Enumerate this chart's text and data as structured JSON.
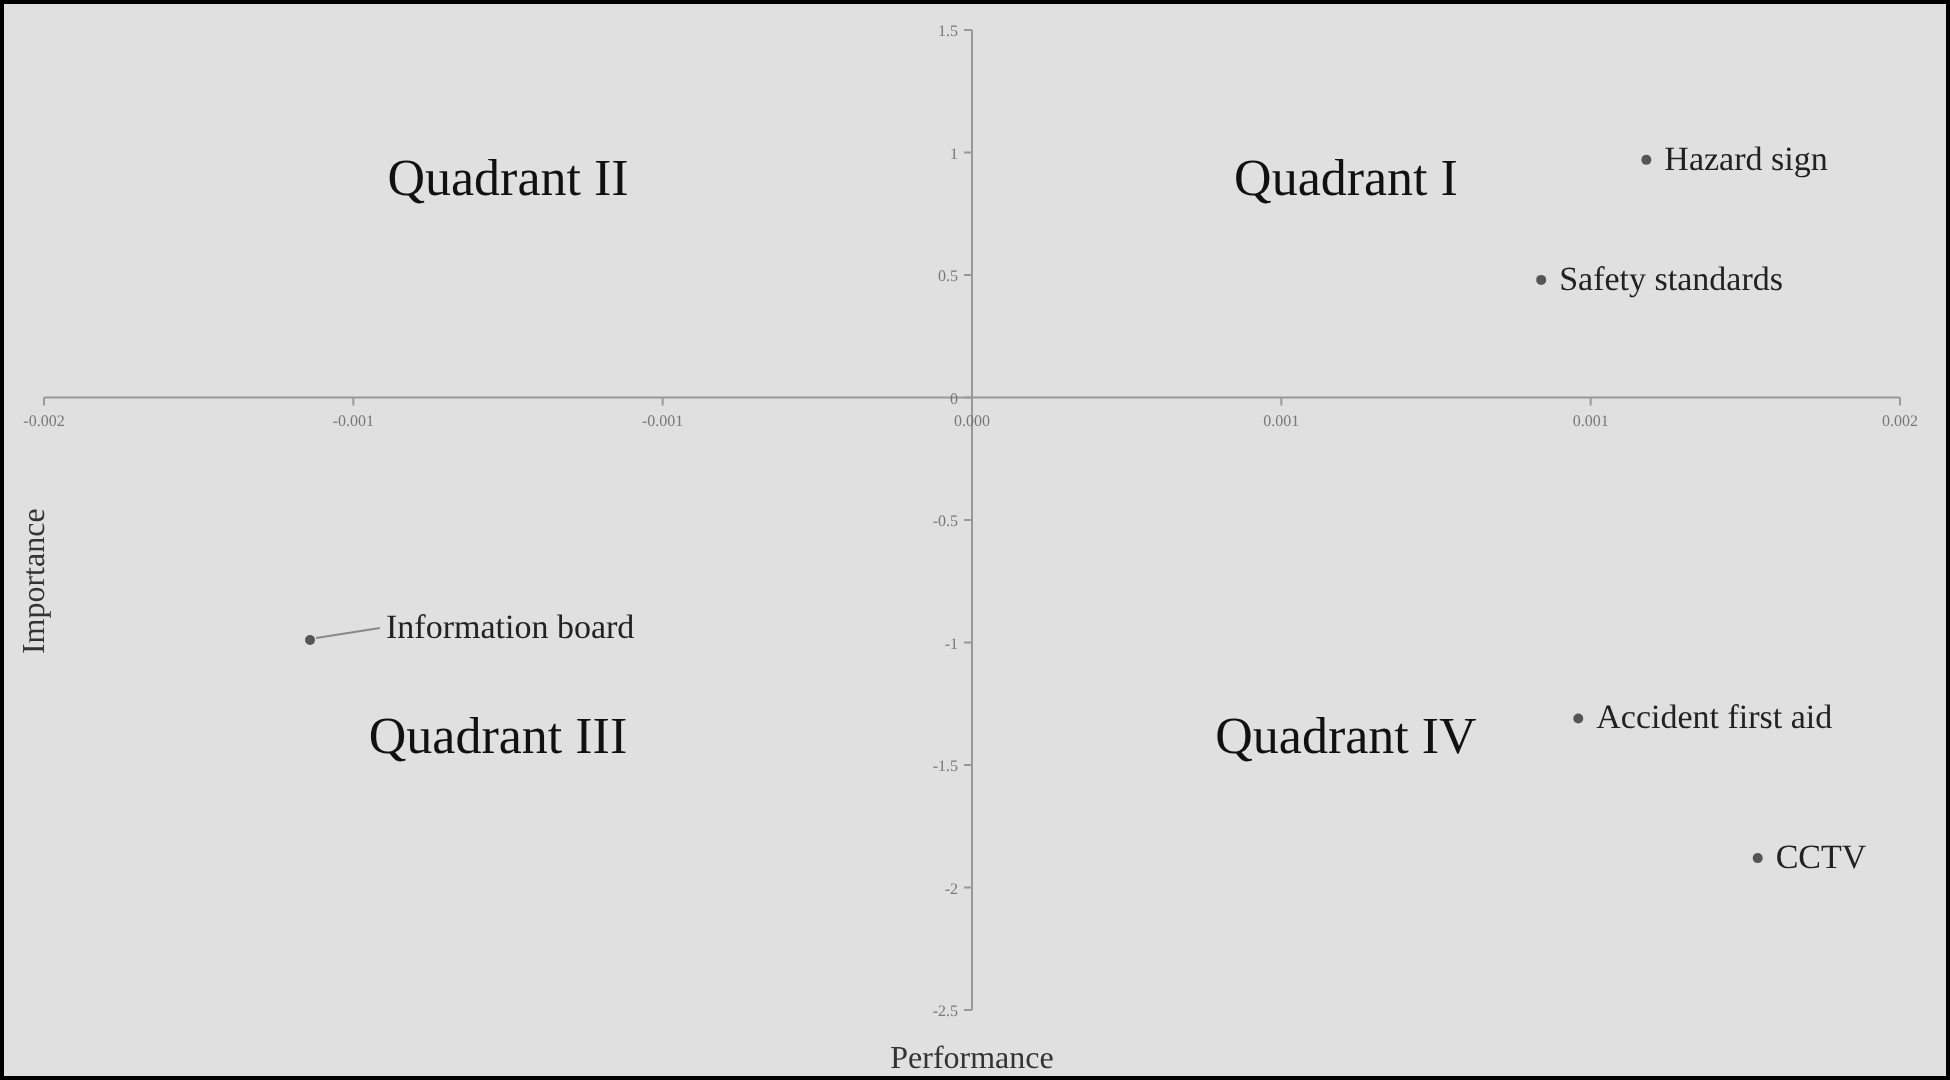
{
  "chart_data": {
    "type": "scatter",
    "xlabel": "Performance",
    "ylabel": "Importance",
    "x": [
      0.00109,
      0.00092,
      -0.00107,
      0.00098,
      0.00127
    ],
    "series": [
      {
        "color": "#555555",
        "values": [
          0.97,
          0.48,
          -0.99,
          -1.31,
          -1.88
        ]
      }
    ],
    "marker": "circle",
    "xlim": [
      -0.0015,
      0.0015
    ],
    "xticks": [
      {
        "value": -0.0015,
        "label": "-0.002"
      },
      {
        "value": -0.001,
        "label": "-0.001"
      },
      {
        "value": -0.0005,
        "label": "-0.001"
      },
      {
        "value": 0,
        "label": "0.000"
      },
      {
        "value": 0.0005,
        "label": "0.001"
      },
      {
        "value": 0.001,
        "label": "0.001"
      },
      {
        "value": 0.0015,
        "label": "0.002"
      }
    ],
    "ylim": [
      -2.5,
      1.5
    ],
    "yticks": [
      1.5,
      1,
      0.5,
      0,
      -0.5,
      -1,
      -1.5,
      -2,
      -2.5
    ],
    "grid": false,
    "annotations": [
      "Quadrant II",
      "Quadrant I",
      "Quadrant III",
      "Quadrant IV",
      {
        "text": "Hazard sign",
        "x": 0.00109,
        "y": 0.97
      },
      {
        "text": "Safety standards",
        "x": 0.00092,
        "y": 0.48
      },
      {
        "text": "Information board",
        "x": -0.00107,
        "y": -0.99
      },
      {
        "text": "Accident first aid",
        "x": 0.00098,
        "y": -1.31
      },
      {
        "text": "CCTV",
        "x": 0.00127,
        "y": -1.88
      }
    ]
  }
}
